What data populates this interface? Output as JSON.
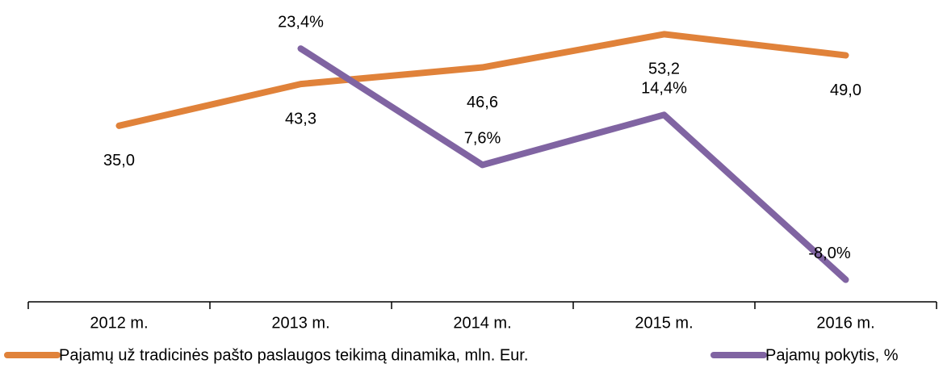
{
  "chart_data": {
    "type": "line",
    "categories": [
      "2012 m.",
      "2013 m.",
      "2014 m.",
      "2015 m.",
      "2016 m."
    ],
    "series": [
      {
        "name": "Pajamų už tradicinės pašto paslaugos teikimą dinamika, mln. Eur.",
        "color": "#e0823a",
        "values": [
          35.0,
          43.3,
          46.6,
          53.2,
          49.0
        ],
        "value_labels": [
          "35,0",
          "43,3",
          "46,6",
          "53,2",
          "49,0"
        ]
      },
      {
        "name": "Pajamų pokytis, %",
        "color": "#8064a2",
        "axis": "y2",
        "values": [
          null,
          23.4,
          7.6,
          14.4,
          -8.0
        ],
        "value_labels": [
          null,
          "23,4%",
          "7,6%",
          "14,4%",
          "-8,0%"
        ]
      }
    ],
    "ylim": [
      0,
      60
    ],
    "y2lim": [
      -11,
      30
    ]
  }
}
